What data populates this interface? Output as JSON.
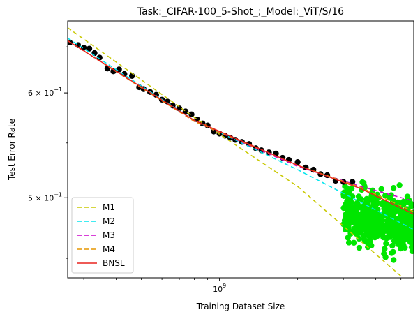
{
  "chart_data": {
    "type": "scatter",
    "title": "Task:_CIFAR-100_5-Shot_;_Model:_ViT/S/16",
    "xlabel": "Training Dataset Size",
    "ylabel": "Test Error Rate",
    "xscale": "log",
    "yscale": "log",
    "xlim": [
      260000000.0,
      5600000000.0
    ],
    "ylim": [
      0.435,
      0.68
    ],
    "x_ticks": [
      {
        "value": 1000000000.0,
        "label_base": "10",
        "label_exp": "9"
      }
    ],
    "y_ticks": [
      {
        "value": 0.6,
        "label_base": "6 × 10",
        "label_exp": "−1"
      },
      {
        "value": 0.5,
        "label_base": "5 × 10",
        "label_exp": "−1"
      }
    ],
    "grid": false,
    "legend_position": "lower-left",
    "series": [
      {
        "kind": "points",
        "color": "#000000",
        "points": [
          [
            265000000.0,
            0.655
          ],
          [
            285000000.0,
            0.652
          ],
          [
            300000000.0,
            0.649
          ],
          [
            315000000.0,
            0.648
          ],
          [
            330000000.0,
            0.643
          ],
          [
            345000000.0,
            0.638
          ],
          [
            370000000.0,
            0.626
          ],
          [
            390000000.0,
            0.623
          ],
          [
            410000000.0,
            0.625
          ],
          [
            430000000.0,
            0.62
          ],
          [
            460000000.0,
            0.618
          ],
          [
            490000000.0,
            0.606
          ],
          [
            510000000.0,
            0.604
          ],
          [
            540000000.0,
            0.601
          ],
          [
            570000000.0,
            0.598
          ],
          [
            600000000.0,
            0.593
          ],
          [
            630000000.0,
            0.591
          ],
          [
            660000000.0,
            0.587
          ],
          [
            700000000.0,
            0.584
          ],
          [
            740000000.0,
            0.581
          ],
          [
            780000000.0,
            0.578
          ],
          [
            820000000.0,
            0.573
          ],
          [
            860000000.0,
            0.569
          ],
          [
            900000000.0,
            0.567
          ],
          [
            950000000.0,
            0.561
          ],
          [
            1000000000.0,
            0.559
          ],
          [
            1050000000.0,
            0.557
          ],
          [
            1100000000.0,
            0.555
          ],
          [
            1150000000.0,
            0.553
          ],
          [
            1220000000.0,
            0.551
          ],
          [
            1300000000.0,
            0.549
          ],
          [
            1380000000.0,
            0.545
          ],
          [
            1450000000.0,
            0.543
          ],
          [
            1550000000.0,
            0.541
          ],
          [
            1650000000.0,
            0.54
          ],
          [
            1750000000.0,
            0.536
          ],
          [
            1850000000.0,
            0.534
          ],
          [
            2000000000.0,
            0.532
          ],
          [
            2150000000.0,
            0.527
          ],
          [
            2300000000.0,
            0.525
          ],
          [
            2450000000.0,
            0.521
          ],
          [
            2600000000.0,
            0.52
          ],
          [
            2800000000.0,
            0.515
          ],
          [
            3000000000.0,
            0.514
          ],
          [
            3250000000.0,
            0.514
          ]
        ]
      },
      {
        "kind": "points",
        "color": "#00e600",
        "x_range": [
          3000000000.0,
          5600000000.0
        ],
        "y_range": [
          0.44,
          0.524
        ],
        "count": 500
      },
      {
        "kind": "line",
        "name": "M1",
        "color": "#c8c800",
        "dash": "6,4",
        "points": [
          [
            260000000.0,
            0.672
          ],
          [
            800000000.0,
            0.575
          ],
          [
            2000000000.0,
            0.51
          ],
          [
            5600000000.0,
            0.428
          ]
        ]
      },
      {
        "kind": "line",
        "name": "M2",
        "color": "#00e5ee",
        "dash": "6,4",
        "points": [
          [
            260000000.0,
            0.66
          ],
          [
            800000000.0,
            0.572
          ],
          [
            2000000000.0,
            0.525
          ],
          [
            5600000000.0,
            0.473
          ]
        ]
      },
      {
        "kind": "line",
        "name": "M3",
        "color": "#cc00cc",
        "dash": "6,4",
        "points": [
          [
            260000000.0,
            0.657
          ],
          [
            800000000.0,
            0.571
          ],
          [
            2000000000.0,
            0.528
          ],
          [
            3500000000.0,
            0.51
          ],
          [
            5600000000.0,
            0.497
          ]
        ]
      },
      {
        "kind": "line",
        "name": "M4",
        "color": "#e69500",
        "dash": "6,4",
        "points": [
          [
            260000000.0,
            0.657
          ],
          [
            800000000.0,
            0.571
          ],
          [
            2000000000.0,
            0.529
          ],
          [
            3500000000.0,
            0.509
          ],
          [
            5600000000.0,
            0.488
          ]
        ]
      },
      {
        "kind": "line",
        "name": "BNSL",
        "color": "#e8231e",
        "dash": "",
        "points": [
          [
            260000000.0,
            0.657
          ],
          [
            800000000.0,
            0.572
          ],
          [
            2000000000.0,
            0.529
          ],
          [
            3500000000.0,
            0.508
          ],
          [
            5600000000.0,
            0.486
          ]
        ]
      }
    ]
  }
}
